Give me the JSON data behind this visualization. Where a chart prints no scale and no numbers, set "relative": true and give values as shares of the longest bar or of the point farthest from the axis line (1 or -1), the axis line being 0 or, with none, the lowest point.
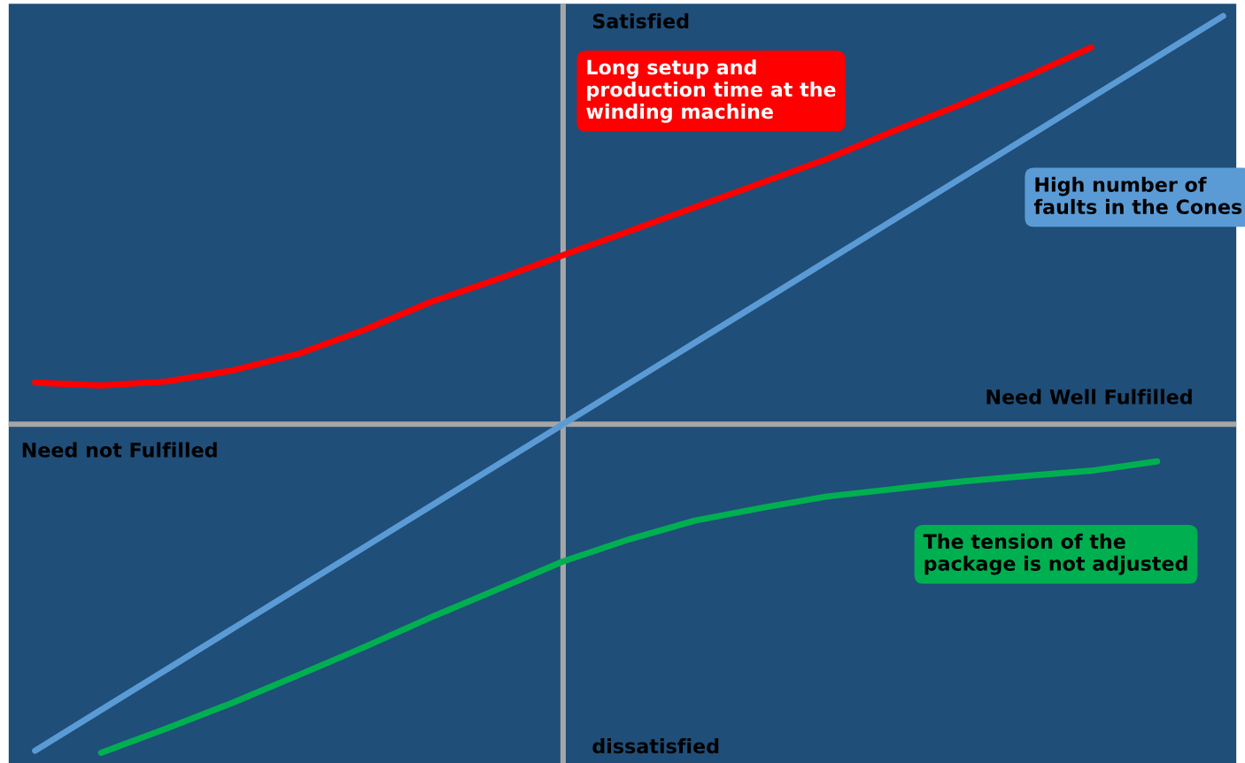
{
  "chart_data": {
    "type": "line",
    "relative": true,
    "grid": false,
    "legend": false,
    "marker": "none",
    "line_style": "solid",
    "annotations": [
      "Satisfied",
      "dissatisfied",
      "Need Well Fulfilled",
      "Need not Fulfilled"
    ],
    "categories": [
      null,
      null,
      null,
      null,
      null,
      null,
      null,
      null,
      null,
      null,
      null,
      null,
      null,
      null,
      null,
      null,
      null,
      null,
      null
    ],
    "series": [
      {
        "name": "Long setup and\nproduction time at the\nwinding machine",
        "color": "#ff0000",
        "values": [
          0.102,
          0.095,
          0.105,
          0.132,
          0.173,
          0.232,
          0.3,
          0.355,
          0.414,
          0.473,
          0.532,
          0.591,
          0.65,
          0.718,
          0.782,
          0.85,
          0.923,
          null,
          null
        ]
      },
      {
        "name": "High number of\nfaults in the Cones",
        "color": "#5b9bd5",
        "values": [
          -0.8,
          -0.7,
          -0.6,
          -0.5,
          -0.4,
          -0.3,
          -0.2,
          -0.1,
          0,
          0.1,
          0.2,
          0.3,
          0.4,
          0.5,
          0.6,
          0.7,
          0.8,
          0.9,
          1.0
        ]
      },
      {
        "name": "The tension of the\npackage is not adjusted",
        "color": "#00b050",
        "values": [
          null,
          -0.805,
          -0.745,
          -0.682,
          -0.614,
          -0.545,
          -0.473,
          -0.405,
          -0.336,
          -0.282,
          -0.236,
          -0.205,
          -0.177,
          -0.159,
          -0.141,
          -0.127,
          -0.114,
          -0.091,
          null
        ]
      }
    ]
  }
}
